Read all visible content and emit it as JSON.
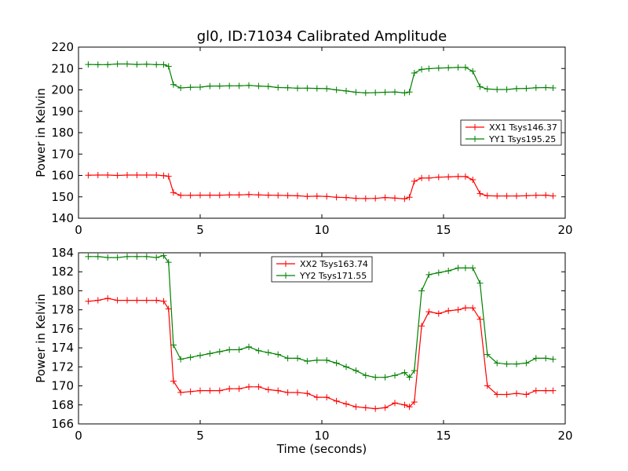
{
  "chart_data": [
    {
      "type": "line",
      "title": "gl0, ID:71034 Calibrated Amplitude",
      "xlabel": "",
      "ylabel": "Power in Kelvin",
      "xlim": [
        0,
        20
      ],
      "ylim": [
        140,
        220
      ],
      "xticks": [
        "0",
        "5",
        "10",
        "15",
        "20"
      ],
      "yticks": [
        "140",
        "150",
        "160",
        "170",
        "180",
        "190",
        "200",
        "210",
        "220"
      ],
      "grid": false,
      "legend_position": "right",
      "x": [
        0.4,
        0.8,
        1.2,
        1.6,
        2.0,
        2.4,
        2.8,
        3.2,
        3.5,
        3.7,
        3.9,
        4.2,
        4.6,
        5.0,
        5.4,
        5.8,
        6.2,
        6.6,
        7.0,
        7.4,
        7.8,
        8.2,
        8.6,
        9.0,
        9.4,
        9.8,
        10.2,
        10.6,
        11.0,
        11.4,
        11.8,
        12.2,
        12.6,
        13.0,
        13.4,
        13.6,
        13.8,
        14.1,
        14.4,
        14.8,
        15.2,
        15.6,
        15.9,
        16.2,
        16.5,
        16.8,
        17.2,
        17.6,
        18.0,
        18.4,
        18.8,
        19.2,
        19.5
      ],
      "series": [
        {
          "name": "XX1 Tsys146.37",
          "color": "#ff0000",
          "values": [
            160.1,
            160.2,
            160.2,
            160.0,
            160.2,
            160.2,
            160.2,
            160.2,
            159.9,
            159.6,
            152.0,
            150.7,
            150.7,
            150.8,
            150.8,
            150.8,
            150.9,
            150.9,
            151.1,
            150.9,
            150.8,
            150.7,
            150.6,
            150.5,
            150.2,
            150.3,
            150.2,
            149.8,
            149.7,
            149.3,
            149.2,
            149.3,
            149.7,
            149.4,
            149.1,
            149.8,
            157.3,
            158.8,
            158.8,
            159.2,
            159.3,
            159.5,
            159.5,
            158.0,
            151.5,
            150.5,
            150.4,
            150.4,
            150.4,
            150.5,
            150.7,
            150.8,
            150.4
          ]
        },
        {
          "name": "YY1 Tsys195.25",
          "color": "#008000",
          "values": [
            211.9,
            211.8,
            211.8,
            212.1,
            212.1,
            211.9,
            212.0,
            211.8,
            211.8,
            211.0,
            202.5,
            200.9,
            201.2,
            201.3,
            201.8,
            201.8,
            201.9,
            201.9,
            202.1,
            201.8,
            201.6,
            201.1,
            201.0,
            200.8,
            200.8,
            200.7,
            200.6,
            200.0,
            199.5,
            198.9,
            198.6,
            198.7,
            198.9,
            199.0,
            198.6,
            199.0,
            207.9,
            209.6,
            209.9,
            210.2,
            210.3,
            210.5,
            210.5,
            208.7,
            201.5,
            200.4,
            200.2,
            200.2,
            200.6,
            200.7,
            201.0,
            201.1,
            200.9
          ]
        }
      ]
    },
    {
      "type": "line",
      "title": "",
      "xlabel": "Time (seconds)",
      "ylabel": "Power in Kelvin",
      "xlim": [
        0,
        20
      ],
      "ylim": [
        166,
        184
      ],
      "xticks": [
        "0",
        "5",
        "10",
        "15",
        "20"
      ],
      "yticks": [
        "166",
        "168",
        "170",
        "172",
        "174",
        "176",
        "178",
        "180",
        "182",
        "184"
      ],
      "grid": false,
      "legend_position": "top-center",
      "x": [
        0.4,
        0.8,
        1.2,
        1.6,
        2.0,
        2.4,
        2.8,
        3.2,
        3.5,
        3.7,
        3.9,
        4.2,
        4.6,
        5.0,
        5.4,
        5.8,
        6.2,
        6.6,
        7.0,
        7.4,
        7.8,
        8.2,
        8.6,
        9.0,
        9.4,
        9.8,
        10.2,
        10.6,
        11.0,
        11.4,
        11.8,
        12.2,
        12.6,
        13.0,
        13.4,
        13.6,
        13.8,
        14.1,
        14.4,
        14.8,
        15.2,
        15.6,
        15.9,
        16.2,
        16.5,
        16.8,
        17.2,
        17.6,
        18.0,
        18.4,
        18.8,
        19.2,
        19.5
      ],
      "series": [
        {
          "name": "XX2 Tsys163.74",
          "color": "#ff0000",
          "values": [
            178.9,
            179.0,
            179.2,
            179.0,
            179.0,
            179.0,
            179.0,
            179.0,
            178.9,
            178.1,
            170.5,
            169.3,
            169.4,
            169.5,
            169.5,
            169.5,
            169.7,
            169.7,
            169.9,
            169.9,
            169.6,
            169.5,
            169.3,
            169.3,
            169.2,
            168.8,
            168.8,
            168.4,
            168.1,
            167.8,
            167.7,
            167.6,
            167.7,
            168.2,
            168.0,
            167.8,
            168.3,
            176.3,
            177.8,
            177.6,
            177.9,
            178.0,
            178.2,
            178.2,
            177.0,
            170.0,
            169.1,
            169.1,
            169.2,
            169.1,
            169.5,
            169.5,
            169.5
          ]
        },
        {
          "name": "YY2 Tsys171.55",
          "color": "#008000",
          "values": [
            183.6,
            183.6,
            183.5,
            183.5,
            183.6,
            183.6,
            183.6,
            183.5,
            183.7,
            183.0,
            174.3,
            172.8,
            173.0,
            173.2,
            173.4,
            173.6,
            173.8,
            173.8,
            174.1,
            173.7,
            173.5,
            173.3,
            172.9,
            172.9,
            172.6,
            172.7,
            172.7,
            172.4,
            172.0,
            171.6,
            171.1,
            170.9,
            170.9,
            171.1,
            171.4,
            170.9,
            171.6,
            180.0,
            181.7,
            181.9,
            182.1,
            182.4,
            182.4,
            182.4,
            180.8,
            173.3,
            172.4,
            172.3,
            172.3,
            172.4,
            172.9,
            172.9,
            172.8
          ]
        }
      ]
    }
  ]
}
